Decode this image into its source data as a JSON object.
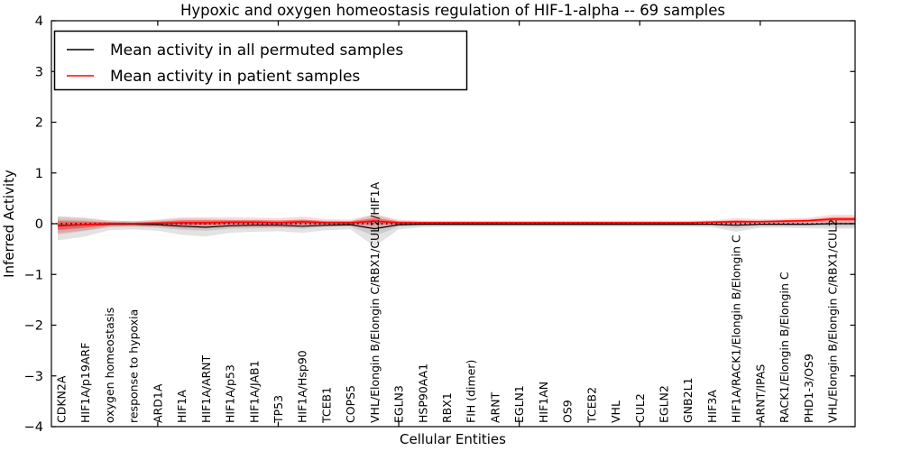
{
  "figure": {
    "title": "Hypoxic and oxygen homeostasis regulation of HIF-1-alpha -- 69 samples",
    "xlabel": "Cellular Entities",
    "ylabel": "Inferred Activity"
  },
  "legend": {
    "position": "upper left",
    "entries": [
      {
        "label": "Mean activity in all permuted samples",
        "color": "#000000"
      },
      {
        "label": "Mean activity in patient samples",
        "color": "#ff0000"
      }
    ]
  },
  "chart_data": {
    "type": "line",
    "title": "Hypoxic and oxygen homeostasis regulation of HIF-1-alpha -- 69 samples",
    "xlabel": "Cellular Entities",
    "ylabel": "Inferred Activity",
    "ylim": [
      -4,
      4
    ],
    "yticks": [
      -4,
      -3,
      -2,
      -1,
      0,
      1,
      2,
      3,
      4
    ],
    "xtick_positions": [
      5,
      10,
      15,
      20,
      25,
      30
    ],
    "grid": false,
    "legend_position": "upper left",
    "zero_line": {
      "y": 0,
      "style": "dotted",
      "color": "#000000"
    },
    "categories": [
      "CDKN2A",
      "HIF1A/p19ARF",
      "oxygen homeostasis",
      "response to hypoxia",
      "ARD1A",
      "HIF1A",
      "HIF1A/ARNT",
      "HIF1A/p53",
      "HIF1A/JAB1",
      "TP53",
      "HIF1A/Hsp90",
      "TCEB1",
      "COPS5",
      "VHL/Elongin B/Elongin C/RBX1/CUL2/HIF1A",
      "EGLN3",
      "HSP90AA1",
      "RBX1",
      "FIH (dimer)",
      "ARNT",
      "EGLN1",
      "HIF1AN",
      "OS9",
      "TCEB2",
      "VHL",
      "CUL2",
      "EGLN2",
      "GNB2L1",
      "HIF3A",
      "HIF1A/RACK1/Elongin B/Elongin C",
      "ARNT/IPAS",
      "RACK1/Elongin B/Elongin C",
      "PHD1-3/OS9",
      "VHL/Elongin B/Elongin C/RBX1/CUL2"
    ],
    "series": [
      {
        "name": "Mean activity in all permuted samples",
        "color": "#000000",
        "width": 1.2,
        "values": [
          -0.03,
          -0.02,
          -0.01,
          -0.01,
          -0.02,
          -0.05,
          -0.07,
          -0.04,
          -0.03,
          -0.03,
          -0.05,
          -0.03,
          -0.02,
          -0.1,
          -0.02,
          -0.01,
          -0.01,
          -0.01,
          -0.01,
          -0.01,
          -0.01,
          -0.01,
          -0.01,
          -0.01,
          -0.01,
          -0.01,
          -0.01,
          -0.01,
          -0.03,
          -0.01,
          -0.01,
          -0.01,
          0.0
        ]
      },
      {
        "name": "Mean activity in patient samples",
        "color": "#ff0000",
        "width": 1.6,
        "values": [
          -0.04,
          -0.02,
          0.0,
          0.0,
          0.01,
          0.02,
          0.02,
          0.03,
          0.03,
          0.02,
          0.04,
          0.02,
          0.02,
          0.05,
          0.02,
          0.02,
          0.02,
          0.02,
          0.02,
          0.02,
          0.02,
          0.02,
          0.02,
          0.02,
          0.02,
          0.02,
          0.02,
          0.03,
          0.04,
          0.04,
          0.05,
          0.06,
          0.09
        ]
      }
    ],
    "bands": [
      {
        "name": "permuted-spread-outer",
        "color": "#cccccc",
        "opacity": 0.55,
        "hi": [
          0.15,
          0.12,
          0.06,
          0.05,
          0.07,
          0.1,
          0.1,
          0.08,
          0.08,
          0.07,
          0.08,
          0.06,
          0.05,
          0.18,
          0.05,
          0.03,
          0.03,
          0.03,
          0.03,
          0.03,
          0.03,
          0.03,
          0.03,
          0.03,
          0.03,
          0.03,
          0.03,
          0.03,
          0.06,
          0.04,
          0.04,
          0.04,
          0.05
        ],
        "lo": [
          -0.32,
          -0.25,
          -0.13,
          -0.11,
          -0.14,
          -0.22,
          -0.25,
          -0.18,
          -0.16,
          -0.15,
          -0.18,
          -0.13,
          -0.11,
          -0.45,
          -0.11,
          -0.07,
          -0.06,
          -0.06,
          -0.06,
          -0.06,
          -0.06,
          -0.06,
          -0.06,
          -0.06,
          -0.06,
          -0.06,
          -0.06,
          -0.07,
          -0.16,
          -0.08,
          -0.08,
          -0.09,
          -0.1
        ]
      },
      {
        "name": "permuted-spread-inner",
        "color": "#bbbbbb",
        "opacity": 0.6,
        "hi": [
          0.08,
          0.06,
          0.03,
          0.03,
          0.04,
          0.05,
          0.05,
          0.04,
          0.04,
          0.04,
          0.04,
          0.03,
          0.03,
          0.08,
          0.03,
          0.02,
          0.02,
          0.02,
          0.02,
          0.02,
          0.02,
          0.02,
          0.02,
          0.02,
          0.02,
          0.02,
          0.02,
          0.02,
          0.03,
          0.02,
          0.02,
          0.02,
          0.03
        ],
        "lo": [
          -0.18,
          -0.13,
          -0.07,
          -0.06,
          -0.08,
          -0.12,
          -0.14,
          -0.1,
          -0.09,
          -0.08,
          -0.1,
          -0.07,
          -0.06,
          -0.24,
          -0.06,
          -0.04,
          -0.04,
          -0.04,
          -0.04,
          -0.04,
          -0.04,
          -0.04,
          -0.04,
          -0.04,
          -0.04,
          -0.04,
          -0.04,
          -0.04,
          -0.09,
          -0.05,
          -0.05,
          -0.05,
          -0.06
        ]
      },
      {
        "name": "patient-spread-outer",
        "color": "#ff0000",
        "opacity": 0.15,
        "hi": [
          0.13,
          0.1,
          0.06,
          0.05,
          0.08,
          0.13,
          0.13,
          0.13,
          0.12,
          0.11,
          0.14,
          0.09,
          0.08,
          0.19,
          0.08,
          0.06,
          0.06,
          0.06,
          0.06,
          0.06,
          0.06,
          0.06,
          0.06,
          0.06,
          0.06,
          0.06,
          0.06,
          0.07,
          0.11,
          0.09,
          0.1,
          0.12,
          0.18
        ],
        "lo": [
          -0.21,
          -0.14,
          -0.06,
          -0.05,
          -0.06,
          -0.09,
          -0.09,
          -0.07,
          -0.06,
          -0.07,
          -0.06,
          -0.05,
          -0.04,
          -0.09,
          -0.04,
          -0.02,
          -0.02,
          -0.02,
          -0.02,
          -0.02,
          -0.02,
          -0.02,
          -0.02,
          -0.02,
          -0.02,
          -0.02,
          -0.02,
          -0.01,
          -0.03,
          -0.01,
          0.0,
          0.0,
          0.01
        ]
      },
      {
        "name": "patient-spread-inner",
        "color": "#ff0000",
        "opacity": 0.4,
        "hi": [
          0.05,
          0.04,
          0.03,
          0.02,
          0.04,
          0.07,
          0.07,
          0.07,
          0.07,
          0.06,
          0.08,
          0.05,
          0.05,
          0.11,
          0.05,
          0.04,
          0.04,
          0.04,
          0.04,
          0.04,
          0.04,
          0.04,
          0.04,
          0.04,
          0.04,
          0.04,
          0.04,
          0.05,
          0.07,
          0.06,
          0.07,
          0.08,
          0.13
        ],
        "lo": [
          -0.12,
          -0.08,
          -0.03,
          -0.02,
          -0.02,
          -0.03,
          -0.03,
          -0.01,
          -0.01,
          -0.02,
          -0.01,
          -0.01,
          -0.01,
          -0.01,
          -0.01,
          0.0,
          0.0,
          0.0,
          0.0,
          0.0,
          0.0,
          0.0,
          0.0,
          0.0,
          0.0,
          0.0,
          0.0,
          0.01,
          0.01,
          0.02,
          0.02,
          0.03,
          0.05
        ]
      }
    ]
  }
}
